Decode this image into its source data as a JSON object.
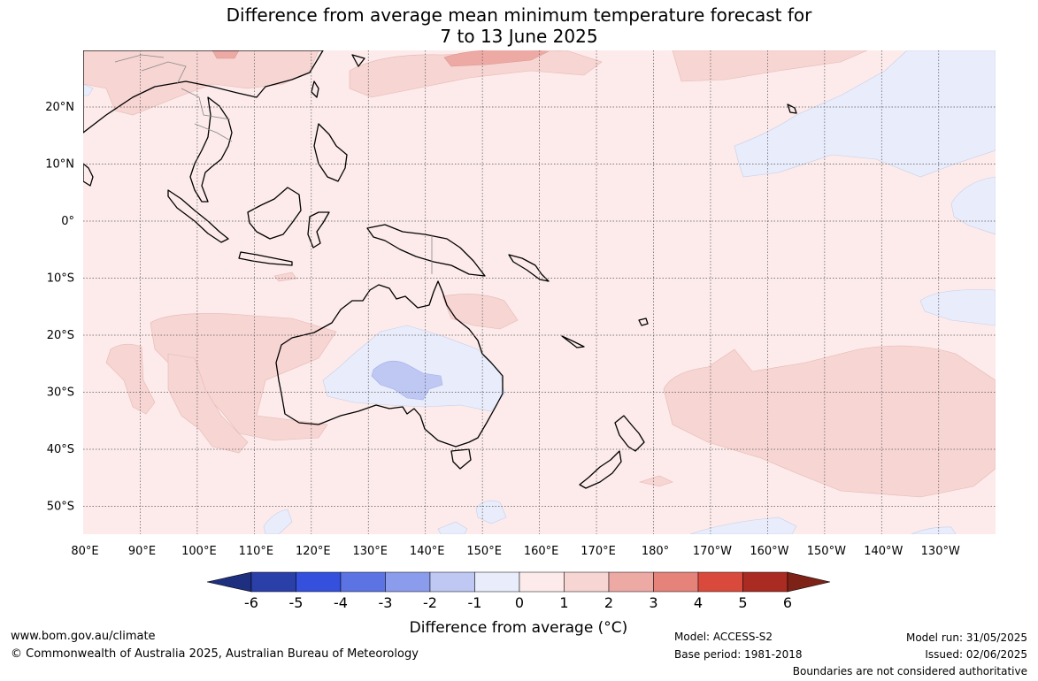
{
  "title_line1": "Difference from average mean minimum temperature forecast for",
  "title_line2": "7 to 13 June 2025",
  "map": {
    "lat_labels": [
      "20°N",
      "10°N",
      "0°",
      "10°S",
      "20°S",
      "30°S",
      "40°S",
      "50°S"
    ],
    "lon_labels": [
      "80°E",
      "90°E",
      "100°E",
      "110°E",
      "120°E",
      "130°E",
      "140°E",
      "150°E",
      "160°E",
      "170°E",
      "180°",
      "170°W",
      "160°W",
      "150°W",
      "140°W",
      "130°W"
    ]
  },
  "colorbar": {
    "ticks": [
      "-6",
      "-5",
      "-4",
      "-3",
      "-2",
      "-1",
      "0",
      "1",
      "2",
      "3",
      "4",
      "5",
      "6"
    ],
    "colors": [
      "#2a3fa8",
      "#3450dc",
      "#5c74e3",
      "#8a9ceb",
      "#bfc8f3",
      "#e8ecfb",
      "#fcebea",
      "#f6d5d3",
      "#eda9a4",
      "#e5837a",
      "#da4a3c",
      "#a92b22"
    ],
    "under_color": "#1f2f7f",
    "over_color": "#7e2218",
    "label": "Difference from average (°C)"
  },
  "footer": {
    "website": "www.bom.gov.au/climate",
    "copyright": "© Commonwealth of Australia 2025, Australian Bureau of Meteorology",
    "model": "Model: ACCESS-S2",
    "base_period": "Base period: 1981-2018",
    "model_run": "Model run: 31/05/2025",
    "issued": "Issued: 02/06/2025",
    "disclaimer": "Boundaries are not considered authoritative"
  }
}
